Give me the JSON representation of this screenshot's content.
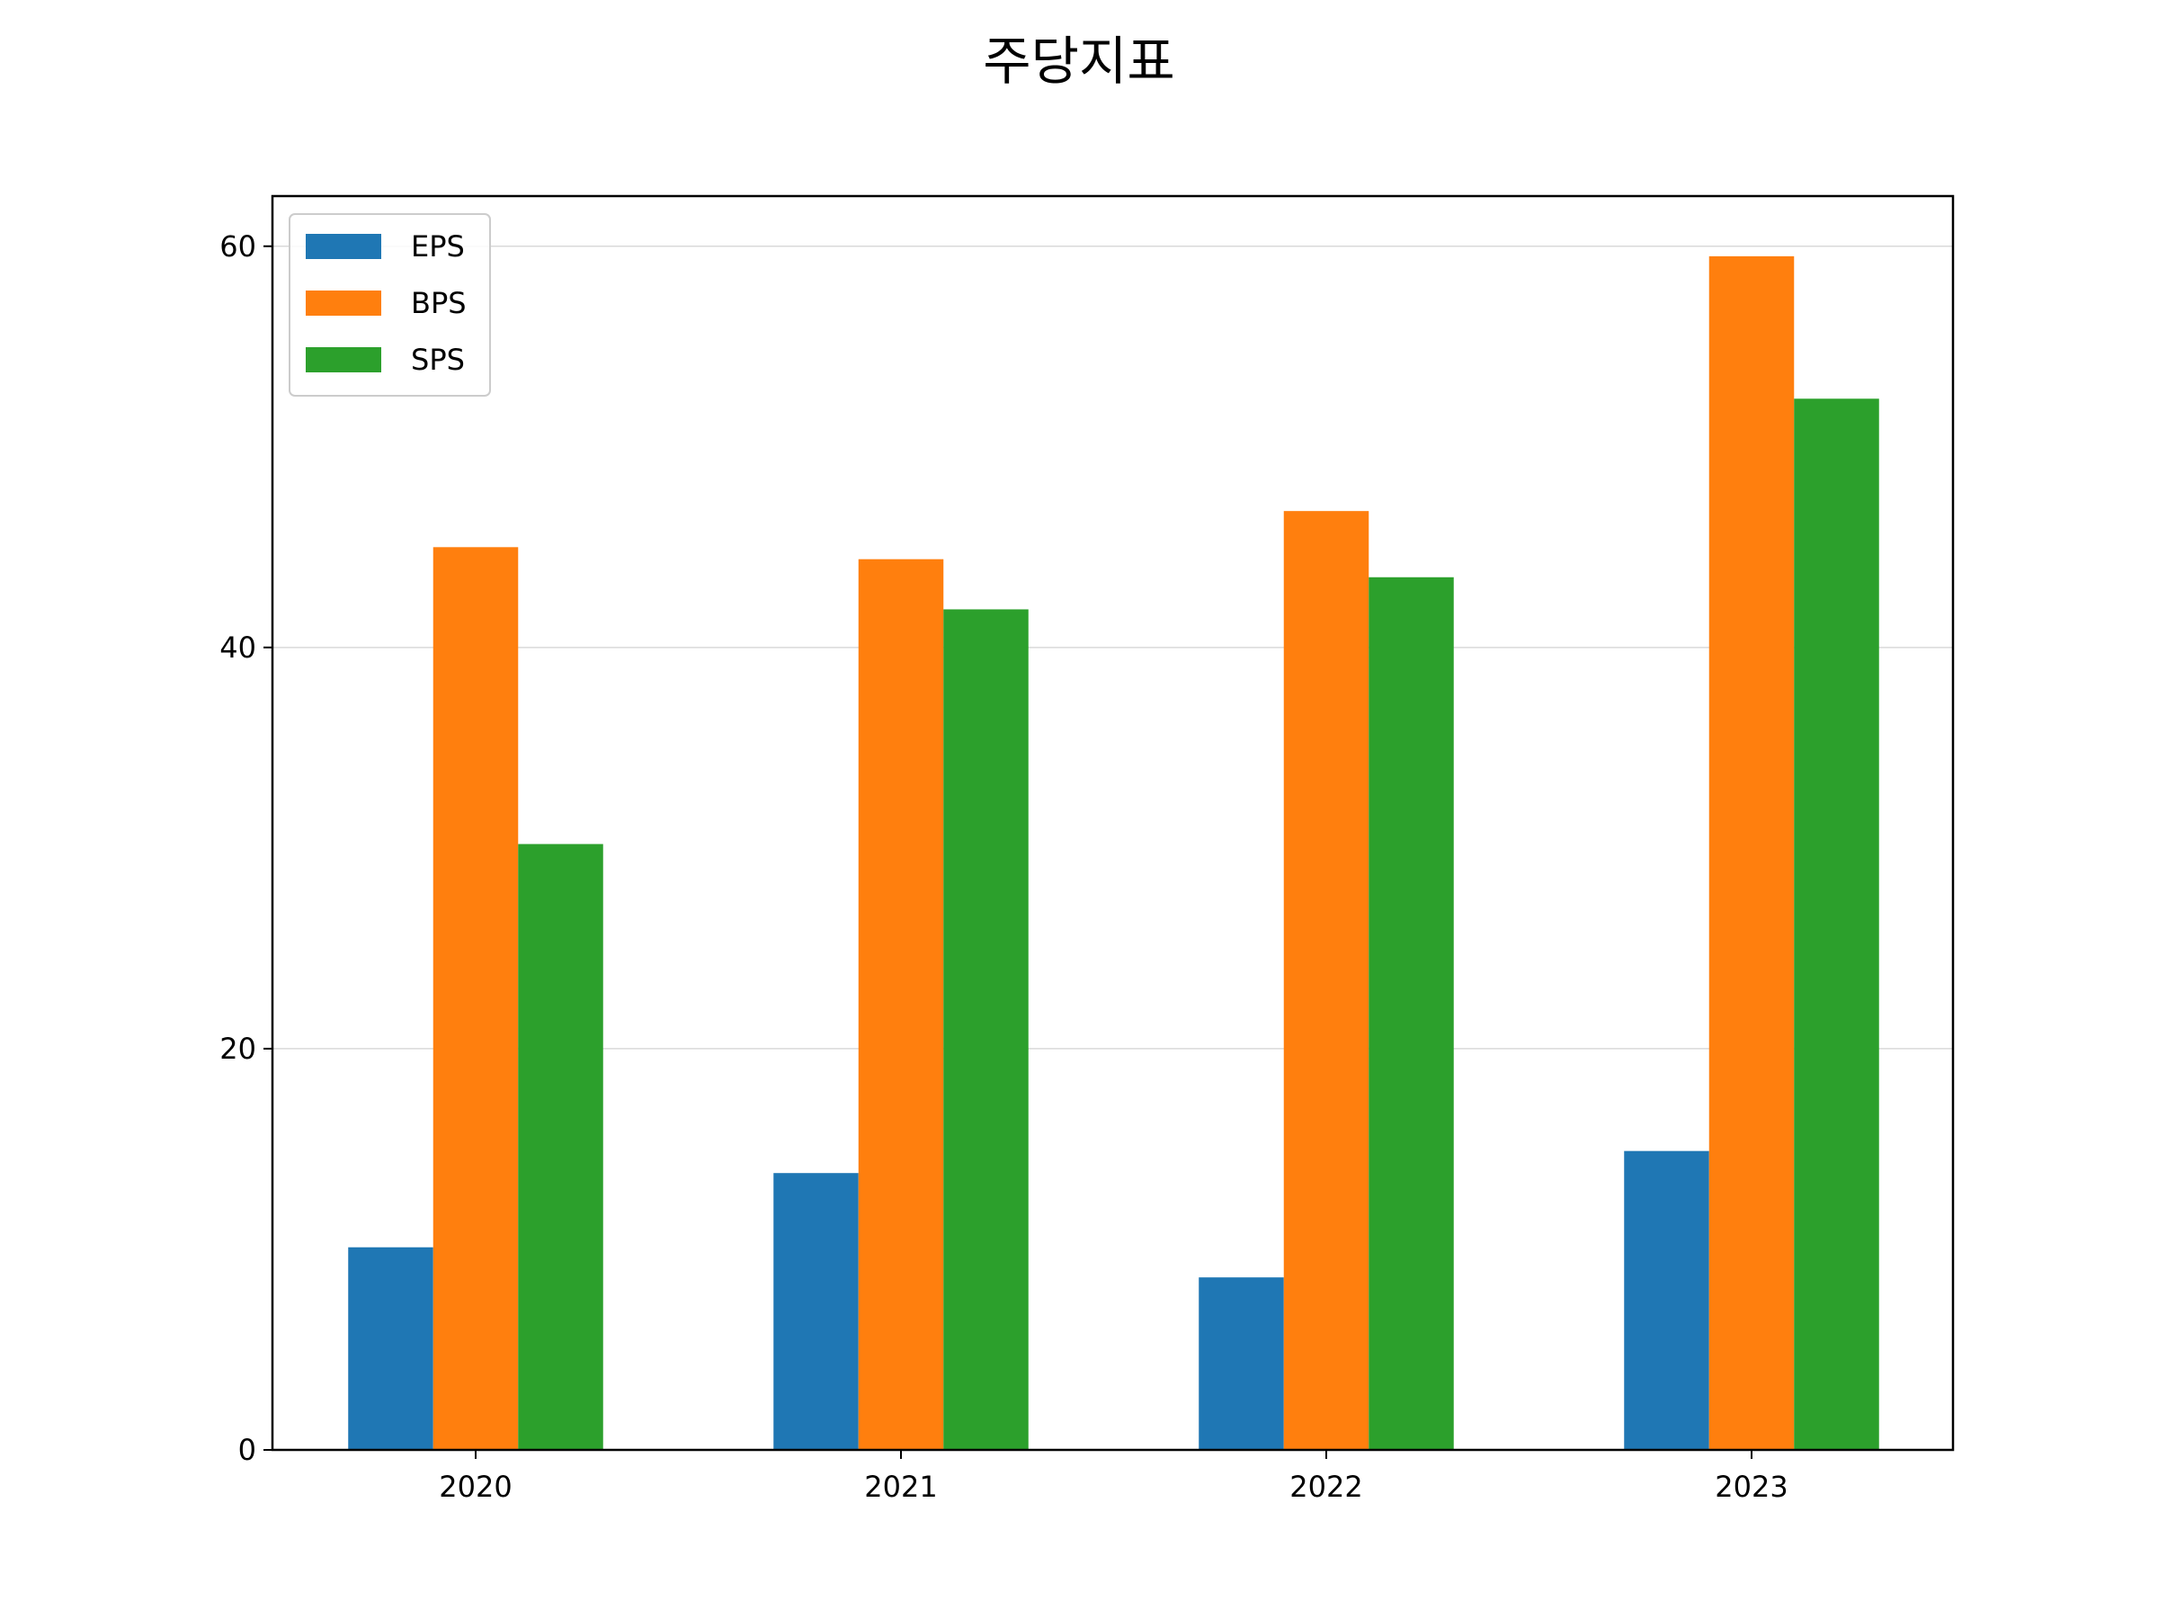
{
  "chart_data": {
    "type": "bar",
    "title": "주당지표",
    "xlabel": "",
    "ylabel": "",
    "categories": [
      "2020",
      "2021",
      "2022",
      "2023"
    ],
    "series": [
      {
        "name": "EPS",
        "values": [
          10.1,
          13.8,
          8.6,
          14.9
        ],
        "color": "#1f77b4"
      },
      {
        "name": "BPS",
        "values": [
          45.0,
          44.4,
          46.8,
          59.5
        ],
        "color": "#ff7f0e"
      },
      {
        "name": "SPS",
        "values": [
          30.2,
          41.9,
          43.5,
          52.4
        ],
        "color": "#2ca02c"
      }
    ],
    "ylim": [
      0,
      62.5
    ],
    "yticks": [
      0,
      20,
      40,
      60
    ],
    "grid": "horizontal",
    "legend_position": "top-left"
  }
}
